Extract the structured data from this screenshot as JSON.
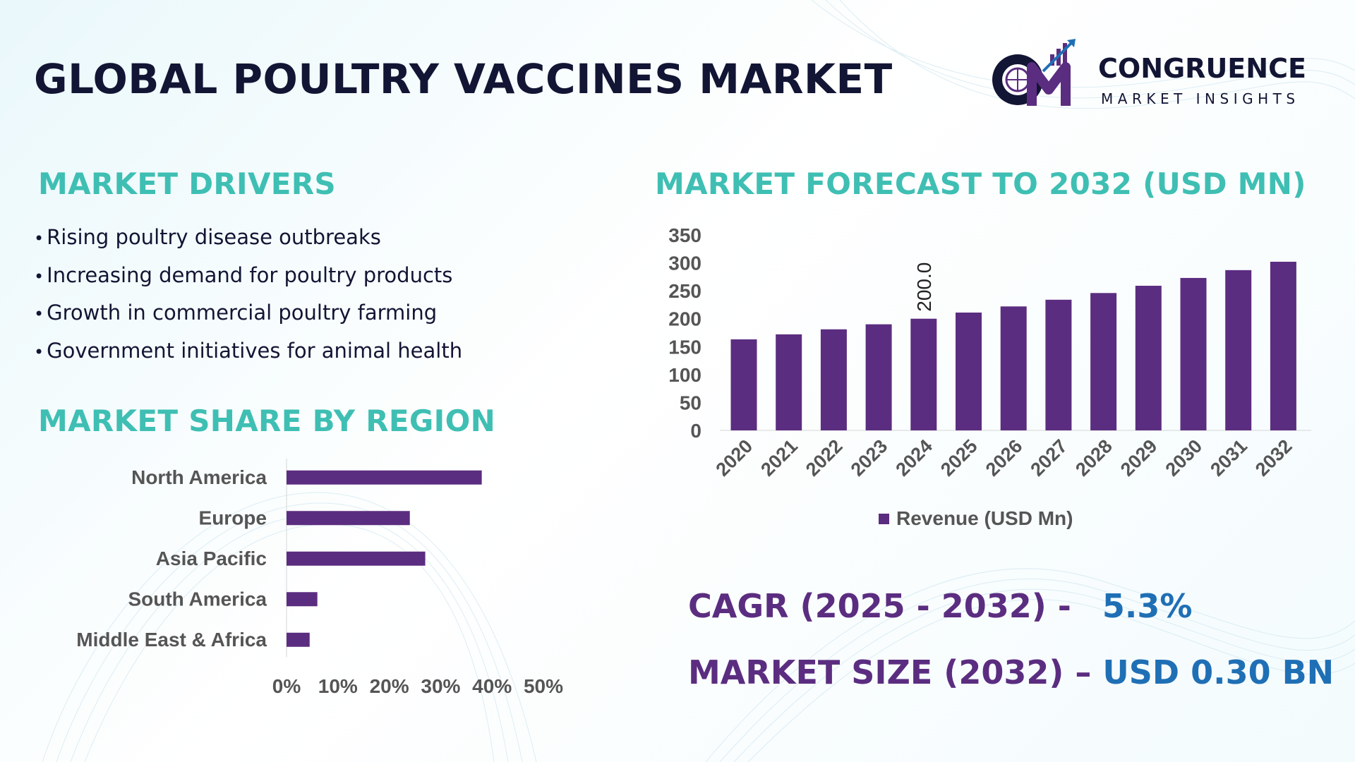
{
  "title": "GLOBAL POULTRY VACCINES MARKET",
  "logo": {
    "line1": "CONGRUENCE",
    "line2": "MARKET INSIGHTS"
  },
  "drivers": {
    "heading": "MARKET DRIVERS",
    "items": [
      "Rising poultry disease outbreaks",
      "Increasing demand for poultry products",
      "Growth in commercial poultry farming",
      "Government initiatives for animal health"
    ]
  },
  "colors": {
    "bar": "#5b2d80",
    "heading": "#3fbfb3",
    "title": "#131534",
    "value": "#1f6fb5"
  },
  "chart_data": [
    {
      "type": "bar",
      "orientation": "horizontal",
      "title": "MARKET SHARE BY REGION",
      "categories": [
        "North America",
        "Europe",
        "Asia Pacific",
        "South America",
        "Middle East & Africa"
      ],
      "values": [
        38,
        24,
        27,
        6,
        4.5
      ],
      "xlim": [
        0,
        50
      ],
      "xticks": [
        "0%",
        "10%",
        "20%",
        "30%",
        "40%",
        "50%"
      ],
      "grid": false
    },
    {
      "type": "bar",
      "title": "MARKET FORECAST TO 2032 (USD MN)",
      "categories": [
        "2020",
        "2021",
        "2022",
        "2023",
        "2024",
        "2025",
        "2026",
        "2027",
        "2028",
        "2029",
        "2030",
        "2031",
        "2032"
      ],
      "series": [
        {
          "name": "Revenue (USD Mn)",
          "values": [
            163,
            172,
            181,
            190,
            200,
            211,
            222,
            234,
            246,
            259,
            273,
            287,
            302
          ]
        }
      ],
      "ylim": [
        0,
        350
      ],
      "yticks": [
        "0",
        "50",
        "100",
        "150",
        "200",
        "250",
        "300",
        "350"
      ],
      "data_labels": [
        {
          "index": 4,
          "text": "200.0"
        }
      ],
      "legend": "bottom",
      "grid": false
    }
  ],
  "stats": {
    "cagr_label": "CAGR (2025 - 2032) -",
    "cagr_value": "5.3%",
    "size_label": "MARKET SIZE (2032) –",
    "size_value": "USD 0.30 BN"
  }
}
